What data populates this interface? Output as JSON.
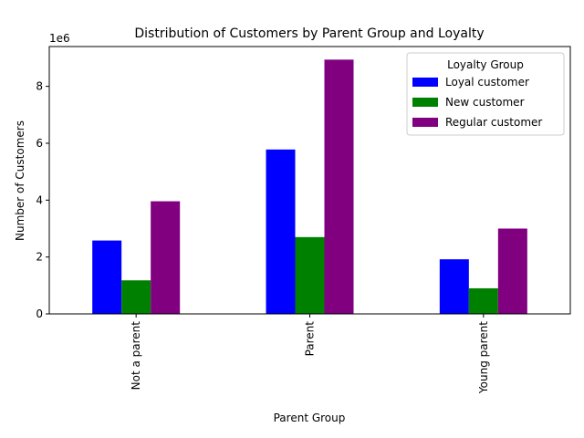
{
  "chart_data": {
    "type": "bar",
    "title": "Distribution of Customers by Parent Group and Loyalty",
    "xlabel": "Parent Group",
    "ylabel": "Number of Customers",
    "y_offset_label": "1e6",
    "categories": [
      "Not a parent",
      "Parent",
      "Young parent"
    ],
    "ylim": [
      0,
      9400000
    ],
    "yticks": [
      0,
      2000000,
      4000000,
      6000000,
      8000000
    ],
    "ytick_labels": [
      "0",
      "2",
      "4",
      "6",
      "8"
    ],
    "legend": {
      "title": "Loyalty Group",
      "placement": "top-right"
    },
    "series": [
      {
        "name": "Loyal customer",
        "color": "#0000ff",
        "values": [
          2580000,
          5780000,
          1920000
        ]
      },
      {
        "name": "New customer",
        "color": "#008000",
        "values": [
          1180000,
          2700000,
          900000
        ]
      },
      {
        "name": "Regular customer",
        "color": "#800080",
        "values": [
          3960000,
          8940000,
          3000000
        ]
      }
    ]
  }
}
